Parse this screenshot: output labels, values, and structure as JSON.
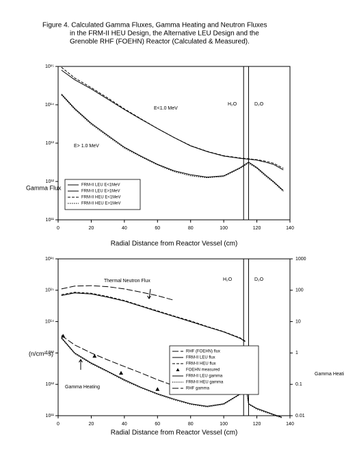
{
  "title": [
    "Figure 4. Calculated Gamma Fluxes, Gamma Heating and Neutron Fluxes",
    "in the FRM-II HEU Design, the Alternative LEU Design and the",
    "Grenoble RHF (FOEHN) Reactor (Calculated & Measured)."
  ],
  "chart_data": [
    {
      "type": "line",
      "xlabel": "Radial Distance from Reactor Vessel (cm)",
      "ylabel": "Gamma Flux",
      "xlim": [
        0,
        140
      ],
      "xticks": [
        0,
        20,
        40,
        60,
        80,
        100,
        120,
        140
      ],
      "ylim": [
        100000000000.0,
        1000000000000000.0
      ],
      "log_y": true,
      "yticks": [
        {
          "value": 100000000000.0,
          "label": "10¹¹"
        },
        {
          "value": 1000000000000.0,
          "label": "10¹²"
        },
        {
          "value": 10000000000000.0,
          "label": "10¹³"
        },
        {
          "value": 100000000000000.0,
          "label": "10¹⁴"
        },
        {
          "value": 1000000000000000.0,
          "label": "10¹⁵"
        }
      ],
      "vlines": [
        112,
        115
      ],
      "annotations": [
        "E<1.0 MeV",
        "E> 1.0 MeV",
        "H₂O",
        "D₂O"
      ],
      "legend": "lower left",
      "series": [
        {
          "name": "FRM-II LEU E<1MeV",
          "color": "#000000",
          "dash": "solid",
          "x": [
            2,
            10,
            20,
            30,
            40,
            50,
            60,
            70,
            80,
            90,
            100,
            110,
            115,
            120,
            125,
            130,
            136
          ],
          "values": [
            800000000000000.0,
            450000000000000.0,
            260000000000000.0,
            140000000000000.0,
            75000000000000.0,
            42000000000000.0,
            24000000000000.0,
            14000000000000.0,
            8500000000000.0,
            6000000000000.0,
            4600000000000.0,
            4000000000000.0,
            3800000000000.0,
            3600000000000.0,
            3200000000000.0,
            2800000000000.0,
            2000000000000.0
          ]
        },
        {
          "name": "FRM-II LEU E>1MeV",
          "color": "#000000",
          "dash": "solid",
          "x": [
            2,
            10,
            20,
            30,
            40,
            50,
            60,
            70,
            80,
            90,
            100,
            110,
            115,
            120,
            125,
            130,
            136
          ],
          "values": [
            190000000000000.0,
            80000000000000.0,
            33000000000000.0,
            16000000000000.0,
            7800000000000.0,
            4600000000000.0,
            2800000000000.0,
            1900000000000.0,
            1500000000000.0,
            1300000000000.0,
            1400000000000.0,
            2300000000000.0,
            3200000000000.0,
            2300000000000.0,
            1500000000000.0,
            1000000000000.0,
            580000000000.0
          ]
        },
        {
          "name": "FRM-II HEU E<1MeV",
          "color": "#000000",
          "dash": "dashed",
          "x": [
            2,
            10,
            20,
            30,
            40,
            50,
            60,
            70,
            80,
            90,
            100,
            110,
            115,
            120,
            125,
            130,
            136
          ],
          "values": [
            950000000000000.0,
            500000000000000.0,
            280000000000000.0,
            150000000000000.0,
            78000000000000.0,
            43000000000000.0,
            24000000000000.0,
            14000000000000.0,
            8600000000000.0,
            6100000000000.0,
            4700000000000.0,
            4100000000000.0,
            3900000000000.0,
            3700000000000.0,
            3400000000000.0,
            3000000000000.0,
            2200000000000.0
          ]
        },
        {
          "name": "FRM-II HEU E>1MeV",
          "color": "#000000",
          "dash": "dotted",
          "x": [
            2,
            10,
            20,
            30,
            40,
            50,
            60,
            70,
            80,
            90,
            100,
            110,
            115,
            120,
            125,
            130,
            136
          ],
          "values": [
            180000000000000.0,
            76000000000000.0,
            31000000000000.0,
            15000000000000.0,
            7400000000000.0,
            4400000000000.0,
            2700000000000.0,
            1800000000000.0,
            1400000000000.0,
            1250000000000.0,
            1350000000000.0,
            2200000000000.0,
            3000000000000.0,
            2200000000000.0,
            1400000000000.0,
            950000000000.0,
            550000000000.0
          ]
        }
      ]
    },
    {
      "type": "line",
      "xlabel": "Radial Distance from Reactor Vessel (cm)",
      "ylabel": "(n/cm²-s)",
      "y2label": "Gamma Heating",
      "xlim": [
        0,
        140
      ],
      "xticks": [
        0,
        20,
        40,
        60,
        80,
        100,
        120,
        140
      ],
      "ylim": [
        100000000000.0,
        1e+16
      ],
      "log_y": true,
      "yticks": [
        {
          "value": 100000000000.0,
          "label": "10¹¹"
        },
        {
          "value": 1000000000000.0,
          "label": "10¹²"
        },
        {
          "value": 10000000000000.0,
          "label": "10¹³"
        },
        {
          "value": 100000000000000.0,
          "label": "10¹⁴"
        },
        {
          "value": 1000000000000000.0,
          "label": "10¹⁵"
        },
        {
          "value": 1e+16,
          "label": "10¹⁶"
        }
      ],
      "y2lim": [
        0.01,
        1000
      ],
      "y2ticks": [
        0.01,
        0.1,
        1,
        10,
        100,
        1000
      ],
      "vlines": [
        112,
        115
      ],
      "annotations": [
        "Thermal Neutron Flux",
        "Gamma Heating",
        "H₂O",
        "D₂O"
      ],
      "legend": "center right",
      "series": [
        {
          "name": "RHF (FOEHN) flux",
          "color": "#000000",
          "dash": "longdash",
          "x": [
            2,
            10,
            20,
            30,
            40,
            50,
            60,
            70
          ],
          "values": [
            1100000000000000.0,
            1350000000000000.0,
            1400000000000000.0,
            1300000000000000.0,
            1100000000000000.0,
            870000000000000.0,
            670000000000000.0,
            480000000000000.0
          ]
        },
        {
          "name": "FRM-II LEU flux",
          "color": "#000000",
          "dash": "solid",
          "x": [
            2,
            10,
            20,
            30,
            40,
            50,
            60,
            70,
            80,
            90,
            100,
            110,
            113
          ],
          "values": [
            680000000000000.0,
            820000000000000.0,
            760000000000000.0,
            600000000000000.0,
            450000000000000.0,
            310000000000000.0,
            210000000000000.0,
            145000000000000.0,
            100000000000000.0,
            68000000000000.0,
            47000000000000.0,
            29000000000000.0,
            23000000000000.0
          ]
        },
        {
          "name": "FRM-II HEU flux",
          "color": "#000000",
          "dash": "dashed",
          "x": [
            2,
            10,
            20,
            30,
            40,
            50,
            60,
            70,
            80,
            90,
            100,
            110,
            113
          ],
          "values": [
            720000000000000.0,
            860000000000000.0,
            800000000000000.0,
            630000000000000.0,
            470000000000000.0,
            320000000000000.0,
            220000000000000.0,
            150000000000000.0,
            105000000000000.0,
            70000000000000.0,
            48000000000000.0,
            30000000000000.0,
            24000000000000.0
          ]
        },
        {
          "name": "FOEHN measured",
          "color": "#000000",
          "marker": "triangle",
          "axis": "y2",
          "x": [
            3,
            22,
            38,
            60
          ],
          "values": [
            3.5,
            0.8,
            0.23,
            0.07
          ]
        },
        {
          "name": "FRM-II LEU gamma",
          "color": "#000000",
          "dash": "solid",
          "axis": "y2",
          "x": [
            2,
            10,
            20,
            30,
            40,
            50,
            60,
            70,
            80,
            90,
            100,
            110,
            113,
            115,
            120,
            130,
            135
          ],
          "values": [
            3.1,
            1.0,
            0.48,
            0.26,
            0.14,
            0.08,
            0.05,
            0.034,
            0.024,
            0.02,
            0.024,
            0.05,
            0.14,
            0.024,
            0.017,
            0.011,
            0.009
          ]
        },
        {
          "name": "FRM-II HEU gamma",
          "color": "#000000",
          "dash": "dotted",
          "axis": "y2",
          "x": [
            2,
            10,
            20,
            30,
            40,
            50,
            60,
            70,
            80,
            90,
            100,
            110,
            113,
            115,
            120,
            130,
            135
          ],
          "values": [
            2.9,
            0.95,
            0.45,
            0.25,
            0.13,
            0.077,
            0.048,
            0.032,
            0.023,
            0.019,
            0.023,
            0.048,
            0.13,
            0.023,
            0.016,
            0.0105,
            0.0085
          ]
        },
        {
          "name": "RHF gamma",
          "color": "#000000",
          "dash": "longdash",
          "axis": "y2",
          "x": [
            2,
            10,
            20,
            30,
            40,
            50,
            60,
            70
          ],
          "values": [
            3.6,
            1.8,
            1.0,
            0.6,
            0.37,
            0.23,
            0.14,
            0.09
          ]
        }
      ]
    }
  ]
}
